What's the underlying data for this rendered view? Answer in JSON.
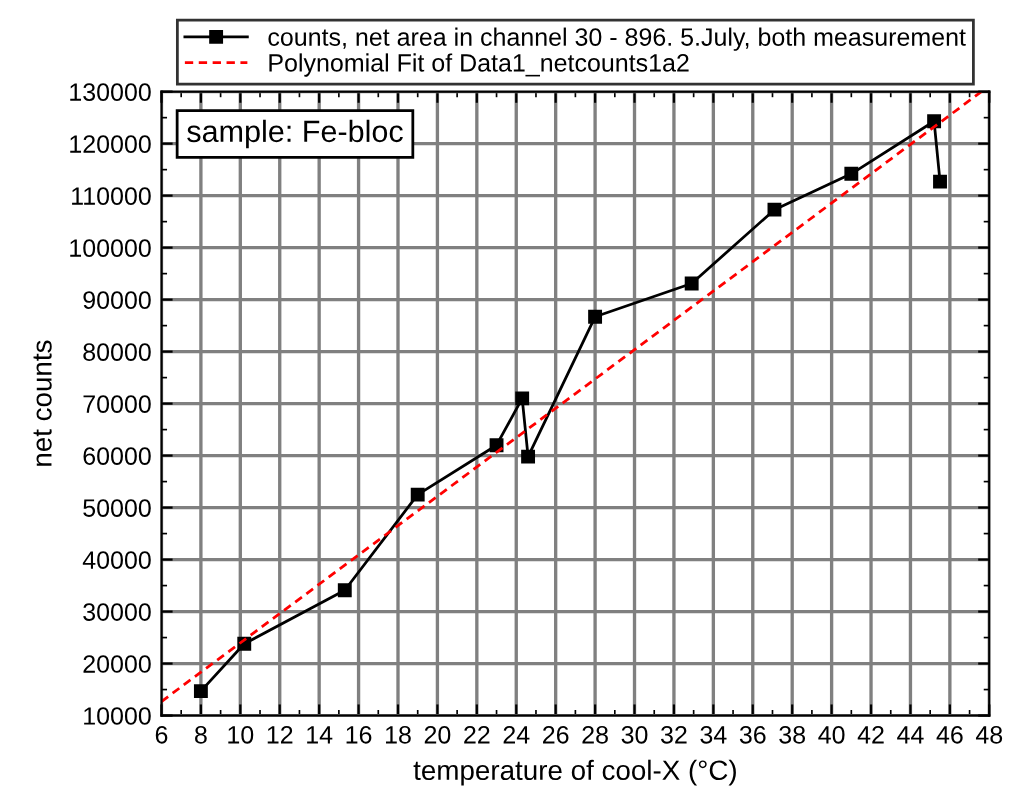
{
  "chart_data": {
    "type": "line",
    "xlabel": "temperature of cool-X (°C)",
    "ylabel": "net counts",
    "annotations": [
      "sample: Fe-bloc"
    ],
    "series": [
      {
        "name": "counts, net area in channel 30 - 896. 5.July, both measurement",
        "color": "#000000",
        "marker": "square",
        "line_style": "solid",
        "x": [
          8,
          10.2,
          15.3,
          19,
          23,
          24.3,
          24.6,
          28,
          32.9,
          37.1,
          41,
          45.2,
          45.5
        ],
        "values": [
          14700,
          23800,
          34100,
          52500,
          62000,
          71000,
          59800,
          86700,
          93100,
          107300,
          114200,
          124300,
          112700
        ]
      },
      {
        "name": "Polynomial Fit of Data1_netcounts1a2",
        "color": "#ff0000",
        "marker": "none",
        "line_style": "dashed",
        "x": [
          6,
          47.6
        ],
        "values": [
          12700,
          130000
        ]
      }
    ],
    "xlim": [
      6,
      48
    ],
    "xticks": [
      6,
      8,
      10,
      12,
      14,
      16,
      18,
      20,
      22,
      24,
      26,
      28,
      30,
      32,
      34,
      36,
      38,
      40,
      42,
      44,
      46,
      48
    ],
    "ylim": [
      10000,
      130000
    ],
    "yticks": [
      10000,
      20000,
      30000,
      40000,
      50000,
      60000,
      70000,
      80000,
      90000,
      100000,
      110000,
      120000,
      130000
    ],
    "grid": true,
    "legend": "top"
  }
}
